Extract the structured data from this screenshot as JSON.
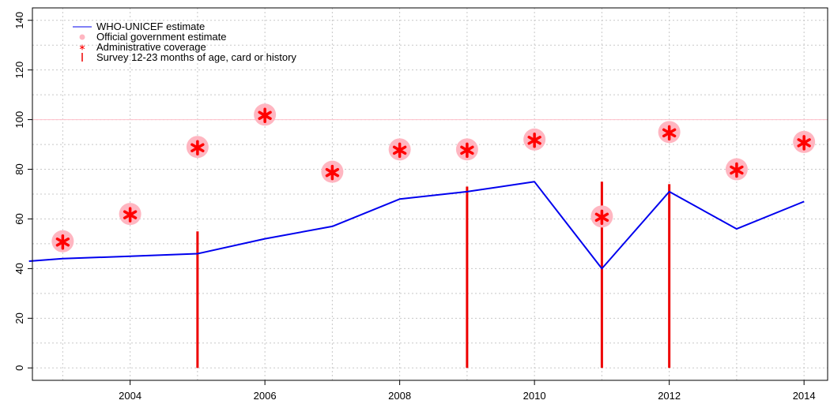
{
  "chart_data": {
    "type": "line",
    "title": "",
    "xlabel": "",
    "ylabel": "",
    "xlim": [
      2002.55,
      2014.35
    ],
    "ylim": [
      -5,
      145
    ],
    "x_ticks": [
      2004,
      2006,
      2008,
      2010,
      2012,
      2014
    ],
    "y_ticks": [
      0,
      20,
      40,
      60,
      80,
      100,
      120,
      140
    ],
    "grid": true,
    "reference_line": {
      "y": 100,
      "color": "#ffc0cb"
    },
    "legend": {
      "position": "top-left",
      "entries": [
        "WHO-UNICEF estimate",
        "Official government estimate",
        "Administrative coverage",
        "Survey 12-23 months of age, card or history"
      ]
    },
    "series": [
      {
        "name": "WHO-UNICEF estimate",
        "kind": "line",
        "color": "#0000ee",
        "x": [
          2002.5,
          2003,
          2004,
          2005,
          2006,
          2007,
          2008,
          2009,
          2010,
          2011,
          2012,
          2013,
          2014
        ],
        "y": [
          43,
          44,
          45,
          46,
          52,
          57,
          68,
          71,
          75,
          40,
          71,
          56,
          67
        ]
      },
      {
        "name": "Official government estimate",
        "kind": "points",
        "color": "#ffb6c1",
        "x": [
          2003,
          2004,
          2005,
          2006,
          2007,
          2008,
          2009,
          2010,
          2011,
          2012,
          2013,
          2014
        ],
        "y": [
          51,
          62,
          89,
          102,
          79,
          88,
          88,
          92,
          61,
          95,
          80,
          91
        ]
      },
      {
        "name": "Administrative coverage",
        "kind": "asterisk",
        "color": "#ff0000",
        "x": [
          2003,
          2004,
          2005,
          2006,
          2007,
          2008,
          2009,
          2010,
          2011,
          2012,
          2013,
          2014
        ],
        "y": [
          51,
          62,
          89,
          102,
          79,
          88,
          88,
          92,
          61,
          95,
          80,
          91
        ]
      },
      {
        "name": "Survey 12-23 months of age, card or history",
        "kind": "vertical-bar",
        "color": "#ee0000",
        "x": [
          2005,
          2009,
          2011,
          2012
        ],
        "y": [
          55,
          73,
          75,
          74
        ]
      }
    ]
  }
}
